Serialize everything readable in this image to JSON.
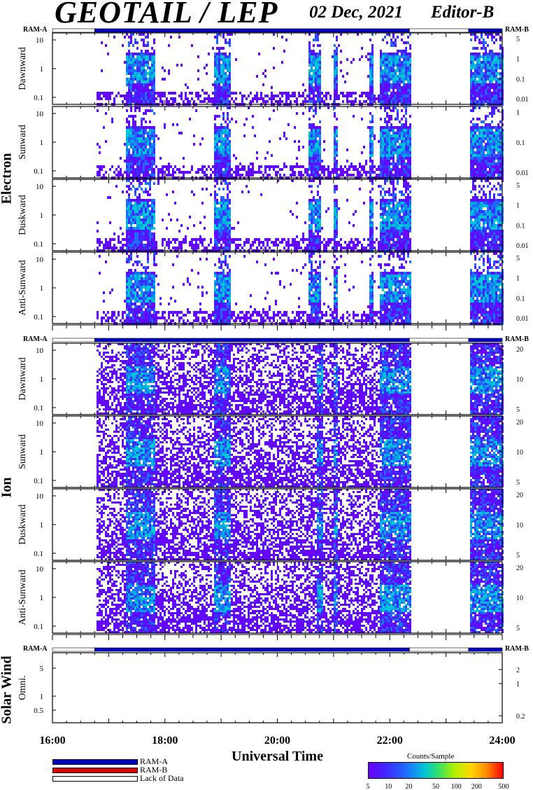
{
  "header": {
    "title": "GEOTAIL / LEP",
    "date": "02 Dec, 2021",
    "editor": "Editor-B"
  },
  "ram_labels": {
    "ram_a": "RAM-A",
    "ram_b": "RAM-B"
  },
  "group_labels": {
    "electron": "Electron",
    "ion": "Ion",
    "solar_wind": "Solar Wind"
  },
  "time_axis": {
    "label": "Universal Time",
    "ticks": [
      "16:00",
      "18:00",
      "20:00",
      "22:00",
      "24:00"
    ]
  },
  "legend": {
    "ram_a": "RAM-A",
    "ram_b": "RAM-B",
    "lack": "Lack of Data",
    "ram_a_color": "#0000c8",
    "ram_b_color": "#e00000"
  },
  "colorbar": {
    "title": "Counts/Sample",
    "ticks": [
      "5",
      "10",
      "20",
      "50",
      "100",
      "200",
      "500"
    ]
  },
  "chart_data": {
    "type": "heatmap",
    "x_range_hours": [
      16,
      24
    ],
    "x_ticks": [
      "16:00",
      "18:00",
      "20:00",
      "22:00",
      "24:00"
    ],
    "ram_status_segments": [
      {
        "start": 16.0,
        "end": 16.75,
        "state": "Lack of Data"
      },
      {
        "start": 16.75,
        "end": 22.35,
        "state": "RAM-A"
      },
      {
        "start": 22.35,
        "end": 23.4,
        "state": "Lack of Data"
      },
      {
        "start": 23.4,
        "end": 24.0,
        "state": "RAM-A"
      }
    ],
    "electron_panels": [
      {
        "name": "Dawnward",
        "left_ticks": [
          "10",
          "1",
          "0.1"
        ],
        "right_ticks": [
          "5",
          "1",
          "0.1",
          "0.01"
        ]
      },
      {
        "name": "Sunward",
        "left_ticks": [
          "10",
          "1",
          "0.1"
        ],
        "right_ticks": [
          "1",
          "0.1",
          "0.01"
        ]
      },
      {
        "name": "Duskward",
        "left_ticks": [
          "10",
          "1",
          "0.1"
        ],
        "right_ticks": [
          "5",
          "1",
          "0.1",
          "0.01"
        ]
      },
      {
        "name": "Anti-Sunward",
        "left_ticks": [
          "10",
          "1",
          "0.1"
        ],
        "right_ticks": [
          "5",
          "1",
          "0.1",
          "0.01"
        ]
      }
    ],
    "ion_panels": [
      {
        "name": "Dawnward",
        "left_ticks": [
          "10",
          "1",
          "0.1"
        ],
        "right_ticks": [
          "20",
          "10",
          "5"
        ]
      },
      {
        "name": "Sunward",
        "left_ticks": [
          "10",
          "1",
          "0.1"
        ],
        "right_ticks": [
          "20",
          "10",
          "5"
        ]
      },
      {
        "name": "Duskward",
        "left_ticks": [
          "10",
          "1",
          "0.1"
        ],
        "right_ticks": [
          "20",
          "10",
          "5"
        ]
      },
      {
        "name": "Anti-Sunward",
        "left_ticks": [
          "10",
          "1",
          "0.1"
        ],
        "right_ticks": [
          "20",
          "10",
          "5"
        ]
      }
    ],
    "solar_wind_panel": {
      "name": "Omni.",
      "left_ticks": [
        "5",
        "1",
        "0.5"
      ],
      "right_ticks": [
        "2",
        "1",
        "0.2"
      ]
    },
    "intervals_with_data": [
      [
        16.75,
        22.35
      ],
      [
        23.4,
        24.0
      ]
    ],
    "electron_bursts": [
      [
        17.3,
        17.8
      ],
      [
        18.85,
        19.15
      ],
      [
        20.55,
        20.75
      ],
      [
        21.0,
        21.05
      ],
      [
        21.6,
        21.7
      ],
      [
        21.8,
        22.35
      ],
      [
        23.4,
        24.0
      ]
    ],
    "ion_bursts": [
      [
        17.3,
        17.8
      ],
      [
        18.85,
        19.15
      ],
      [
        20.7,
        20.8
      ],
      [
        21.0,
        21.05
      ],
      [
        21.8,
        22.35
      ],
      [
        23.4,
        24.0
      ]
    ],
    "colorbar_scale": "log",
    "colorbar_range": [
      5,
      500
    ]
  }
}
